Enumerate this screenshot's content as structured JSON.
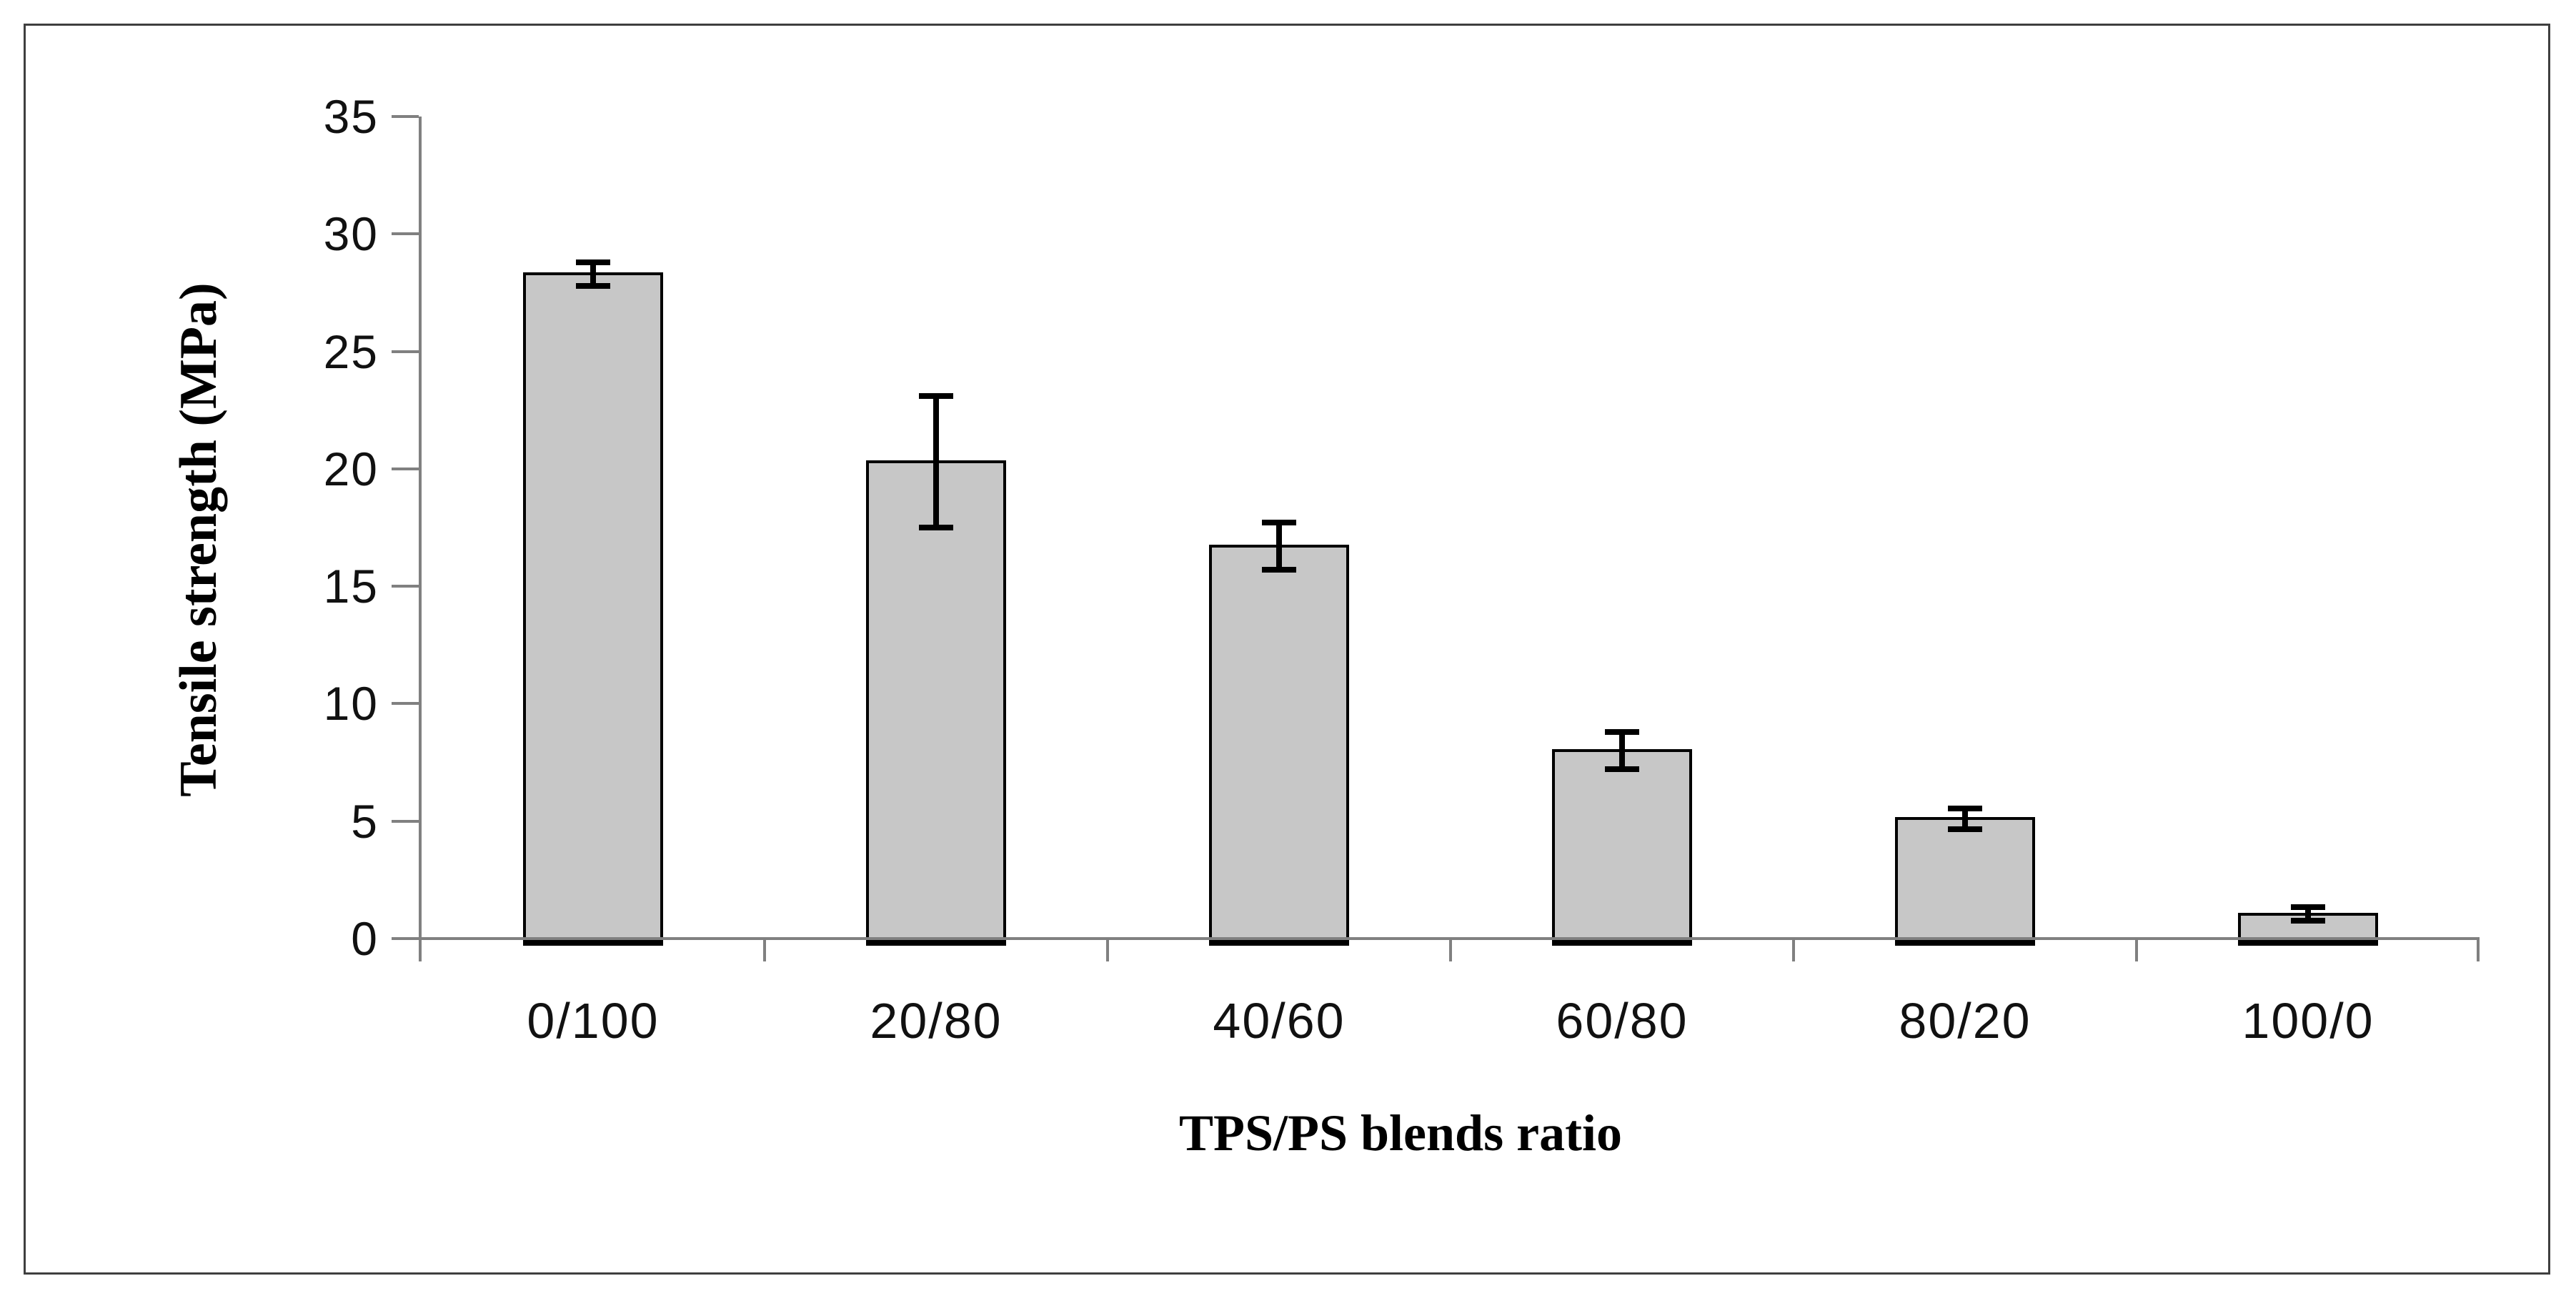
{
  "figure": {
    "background": "#ffffff",
    "border_color": "#3f3f3f"
  },
  "chart_data": {
    "type": "bar",
    "title": "",
    "xlabel": "TPS/PS blends ratio",
    "ylabel": "Tensile strength (MPa)",
    "categories": [
      "0/100",
      "20/80",
      "40/60",
      "60/80",
      "80/20",
      "100/0"
    ],
    "values": [
      28.3,
      20.3,
      16.7,
      8.0,
      5.1,
      1.05
    ],
    "error_bars": [
      0.5,
      2.8,
      1.0,
      0.8,
      0.45,
      0.3
    ],
    "y_ticks": [
      0,
      5,
      10,
      15,
      20,
      25,
      30,
      35
    ],
    "ylim": [
      0,
      35
    ],
    "grid": false,
    "legend": false,
    "bar_fill_color": "#c7c7c7",
    "bar_border_color": "#000000",
    "error_bar_color": "#000000",
    "axis_color": "#808080",
    "tick_label_color": "#111111"
  }
}
